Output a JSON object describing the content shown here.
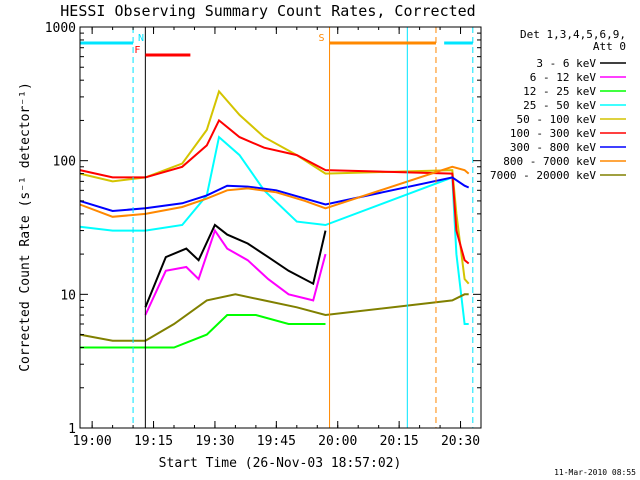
{
  "chart_data": {
    "type": "line",
    "title": "HESSI Observing Summary Count Rates, Corrected",
    "xlabel": "Start Time (26-Nov-03 18:57:02)",
    "ylabel": "Corrected Count Rate (s⁻¹ detector⁻¹)",
    "y_scale": "log",
    "ylim": [
      1,
      1000
    ],
    "xlim": [
      "18:57:02",
      "20:35:00"
    ],
    "x_ticks": [
      "19:00",
      "19:15",
      "19:30",
      "19:45",
      "20:00",
      "20:15",
      "20:30"
    ],
    "y_ticks": [
      "1",
      "10",
      "100",
      "1000"
    ],
    "legend_title_1": "Det 1,3,4,5,6,9,",
    "legend_title_2": "Att 0",
    "legend_position": "right",
    "footer": "11-Mar-2010 08:55",
    "series": [
      {
        "name": "3 - 6 keV",
        "color": "#000000",
        "x": [
          "19:13",
          "19:18",
          "19:23",
          "19:26",
          "19:30",
          "19:33",
          "19:38",
          "19:43",
          "19:48",
          "19:54",
          "19:57"
        ],
        "values": [
          8,
          19,
          22,
          18,
          33,
          28,
          24,
          19,
          15,
          12,
          30
        ]
      },
      {
        "name": "6 - 12 keV",
        "color": "#ff00ff",
        "x": [
          "19:13",
          "19:18",
          "19:23",
          "19:26",
          "19:30",
          "19:33",
          "19:38",
          "19:43",
          "19:48",
          "19:54",
          "19:57"
        ],
        "values": [
          7,
          15,
          16,
          13,
          30,
          22,
          18,
          13,
          10,
          9,
          20
        ]
      },
      {
        "name": "12 - 25 keV",
        "color": "#00ff00",
        "x": [
          "18:57",
          "19:05",
          "19:13",
          "19:20",
          "19:28",
          "19:33",
          "19:40",
          "19:48",
          "19:57"
        ],
        "values": [
          4,
          4,
          4,
          4,
          5,
          7,
          7,
          6,
          6
        ]
      },
      {
        "name": "25 - 50 keV",
        "color": "#00ffff",
        "x": [
          "18:57",
          "19:05",
          "19:13",
          "19:22",
          "19:28",
          "19:31",
          "19:36",
          "19:42",
          "19:50",
          "19:57",
          "20:28",
          "20:29",
          "20:31",
          "20:32"
        ],
        "values": [
          32,
          30,
          30,
          33,
          55,
          150,
          110,
          60,
          35,
          33,
          75,
          20,
          6,
          6
        ]
      },
      {
        "name": "50 - 100 keV",
        "color": "#d4c400",
        "x": [
          "18:57",
          "19:05",
          "19:13",
          "19:22",
          "19:28",
          "19:31",
          "19:36",
          "19:42",
          "19:50",
          "19:57",
          "20:28",
          "20:29",
          "20:31",
          "20:32"
        ],
        "values": [
          80,
          70,
          75,
          95,
          170,
          330,
          220,
          150,
          110,
          80,
          85,
          40,
          13,
          12
        ]
      },
      {
        "name": "100 - 300 keV",
        "color": "#ff0000",
        "x": [
          "18:57",
          "19:05",
          "19:13",
          "19:22",
          "19:28",
          "19:31",
          "19:36",
          "19:42",
          "19:50",
          "19:57",
          "20:28",
          "20:29",
          "20:31",
          "20:32"
        ],
        "values": [
          85,
          75,
          75,
          90,
          130,
          200,
          150,
          125,
          110,
          85,
          80,
          30,
          18,
          17
        ]
      },
      {
        "name": "300 - 800 keV",
        "color": "#0000ff",
        "x": [
          "18:57",
          "19:05",
          "19:13",
          "19:22",
          "19:28",
          "19:33",
          "19:38",
          "19:45",
          "19:52",
          "19:57",
          "20:28",
          "20:31",
          "20:32"
        ],
        "values": [
          50,
          42,
          44,
          48,
          55,
          65,
          64,
          60,
          52,
          47,
          75,
          65,
          63
        ]
      },
      {
        "name": "800 - 7000 keV",
        "color": "#ff8800",
        "x": [
          "18:57",
          "19:05",
          "19:13",
          "19:22",
          "19:28",
          "19:33",
          "19:38",
          "19:45",
          "19:52",
          "19:57",
          "20:28",
          "20:31",
          "20:32"
        ],
        "values": [
          47,
          38,
          40,
          45,
          52,
          60,
          62,
          58,
          50,
          44,
          90,
          85,
          80
        ]
      },
      {
        "name": "7000 - 20000 keV",
        "color": "#808000",
        "x": [
          "18:57",
          "19:05",
          "19:13",
          "19:20",
          "19:28",
          "19:35",
          "19:42",
          "19:50",
          "19:57",
          "20:28",
          "20:31",
          "20:32"
        ],
        "values": [
          5,
          4.5,
          4.5,
          6,
          9,
          10,
          9,
          8,
          7,
          9,
          10,
          10
        ]
      }
    ],
    "flags": [
      {
        "label": "N",
        "color": "#00e5ff",
        "start": "18:57",
        "end": "19:10",
        "row": "upper"
      },
      {
        "label": "F",
        "color": "#ff0000",
        "start": "19:13",
        "end": "19:24",
        "row": "lower"
      },
      {
        "label": "S",
        "color": "#ff8800",
        "start": "19:58",
        "end": "20:24",
        "row": "upper"
      },
      {
        "label": "",
        "color": "#00e5ff",
        "start": "20:26",
        "end": "20:33",
        "row": "upper"
      }
    ],
    "markers": [
      {
        "time": "19:10",
        "color": "#00e5ff",
        "style": "dashed"
      },
      {
        "time": "19:13",
        "color": "#000000",
        "style": "solid"
      },
      {
        "time": "19:58",
        "color": "#ff8800",
        "style": "solid"
      },
      {
        "time": "20:17",
        "color": "#00e5ff",
        "style": "solid"
      },
      {
        "time": "20:24",
        "color": "#ff8800",
        "style": "dashed"
      },
      {
        "time": "20:33",
        "color": "#00e5ff",
        "style": "dashed"
      }
    ]
  }
}
